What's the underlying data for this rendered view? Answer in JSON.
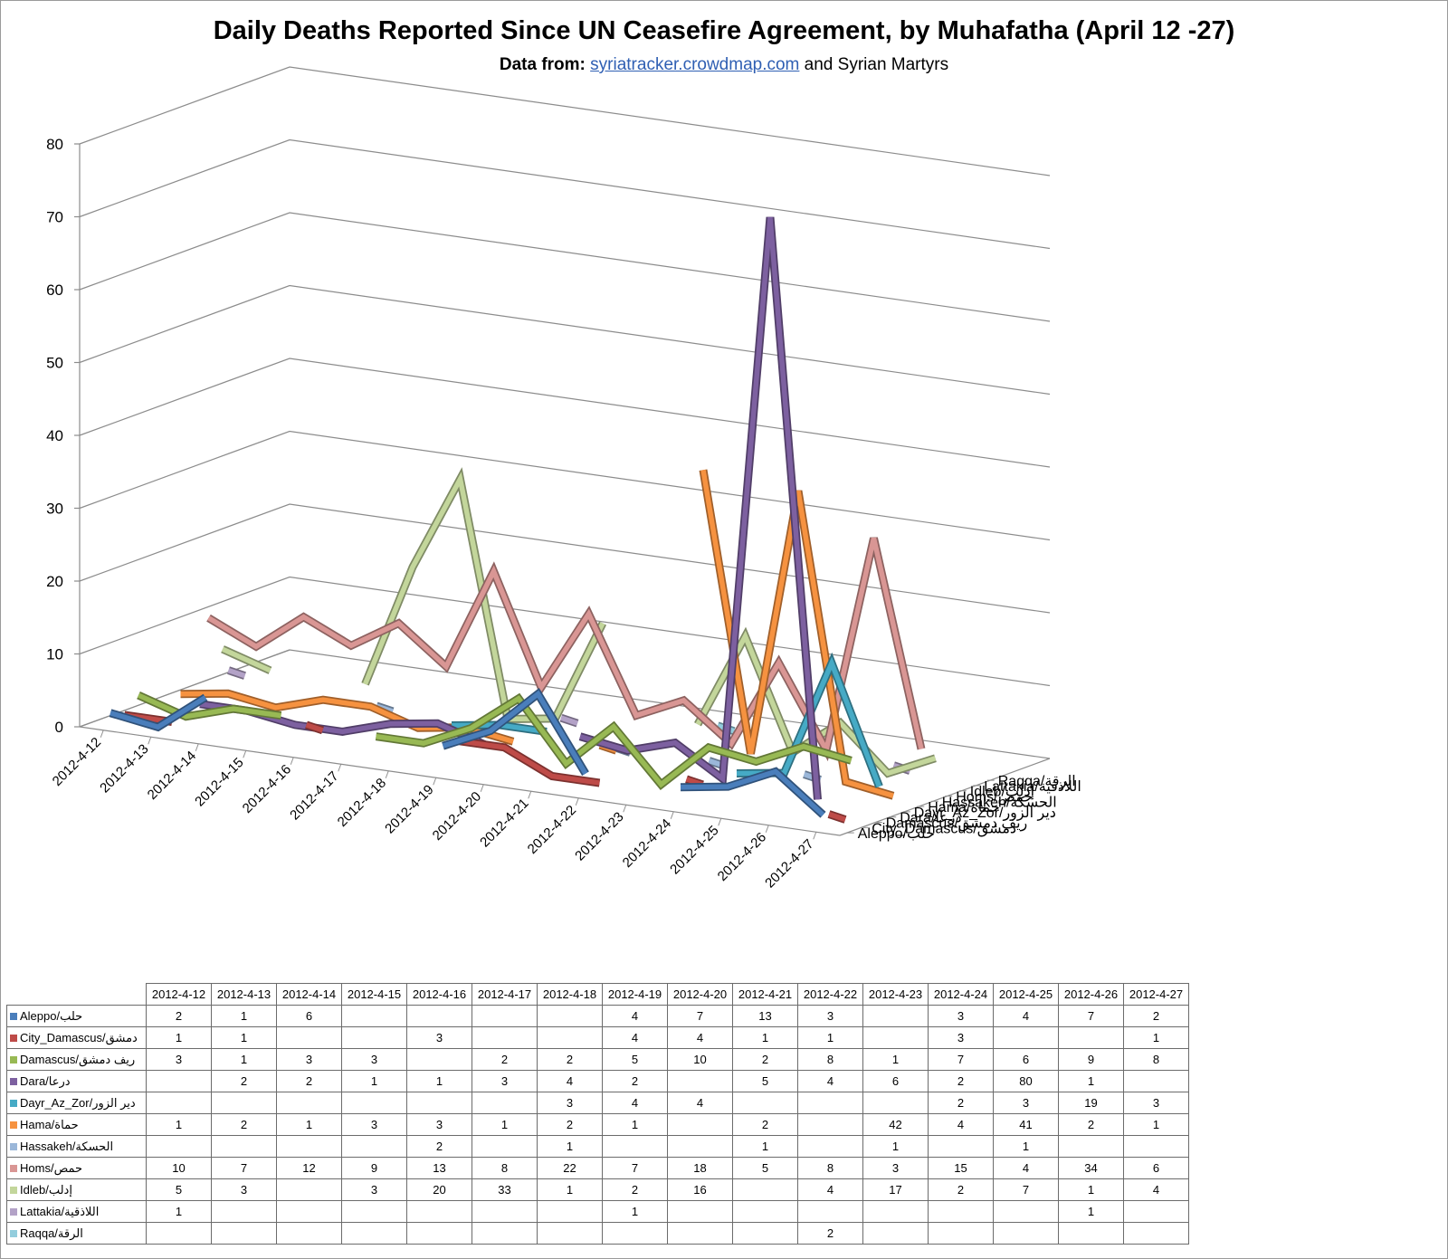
{
  "title": "Daily Deaths Reported Since UN Ceasefire Agreement, by Muhafatha (April 12 -27)",
  "subtitle": {
    "prefix": "Data from:",
    "link_text": "syriatracker.crowdmap.com",
    "suffix": "and Syrian Martyrs"
  },
  "chart_data": {
    "type": "line",
    "style": "3d-line",
    "title": "Daily Deaths Reported Since UN Ceasefire Agreement, by Muhafatha (April 12 -27)",
    "categories": [
      "2012-4-12",
      "2012-4-13",
      "2012-4-14",
      "2012-4-15",
      "2012-4-16",
      "2012-4-17",
      "2012-4-18",
      "2012-4-19",
      "2012-4-20",
      "2012-4-21",
      "2012-4-22",
      "2012-4-23",
      "2012-4-24",
      "2012-4-25",
      "2012-4-26",
      "2012-4-27"
    ],
    "ylim": [
      0,
      80
    ],
    "y_ticks": [
      "0",
      "10",
      "20",
      "30",
      "40",
      "50",
      "60",
      "70",
      "80"
    ],
    "grid": true,
    "legend": "data-table-below",
    "series": [
      {
        "name": "Aleppo/حلب",
        "color": "#4a7ebb",
        "values": [
          2,
          1,
          6,
          null,
          null,
          null,
          null,
          4,
          7,
          13,
          3,
          null,
          3,
          4,
          7,
          2
        ]
      },
      {
        "name": "City_Damascus/دمشق",
        "color": "#be4b48",
        "values": [
          1,
          1,
          null,
          null,
          3,
          null,
          null,
          4,
          4,
          1,
          1,
          null,
          3,
          null,
          null,
          1
        ]
      },
      {
        "name": "Damascus/ريف دمشق",
        "color": "#98b954",
        "values": [
          3,
          1,
          3,
          3,
          null,
          2,
          2,
          5,
          10,
          2,
          8,
          1,
          7,
          6,
          9,
          8
        ]
      },
      {
        "name": "Dara/درعا",
        "color": "#7d60a0",
        "values": [
          null,
          2,
          2,
          1,
          1,
          3,
          4,
          2,
          null,
          5,
          4,
          6,
          2,
          80,
          1,
          null
        ]
      },
      {
        "name": "Dayr_Az_Zor/دير الزور",
        "color": "#46aac5",
        "values": [
          null,
          null,
          null,
          null,
          null,
          null,
          3,
          4,
          4,
          null,
          null,
          null,
          2,
          3,
          19,
          3
        ]
      },
      {
        "name": "Hama/حماة",
        "color": "#f69240",
        "values": [
          1,
          2,
          1,
          3,
          3,
          1,
          2,
          1,
          null,
          2,
          null,
          42,
          4,
          41,
          2,
          1
        ]
      },
      {
        "name": "Hassakeh/الحسكة",
        "color": "#9bb7d9",
        "values": [
          null,
          null,
          null,
          null,
          2,
          null,
          1,
          null,
          null,
          1,
          null,
          1,
          null,
          1,
          null,
          null
        ]
      },
      {
        "name": "Homs/حمص",
        "color": "#d99694",
        "values": [
          10,
          7,
          12,
          9,
          13,
          8,
          22,
          7,
          18,
          5,
          8,
          3,
          15,
          4,
          34,
          6
        ]
      },
      {
        "name": "Idleb/إدلب",
        "color": "#c3d69b",
        "values": [
          5,
          3,
          null,
          3,
          20,
          33,
          1,
          2,
          16,
          null,
          4,
          17,
          2,
          7,
          1,
          4
        ]
      },
      {
        "name": "Lattakia/اللاذقية",
        "color": "#b3a2c7",
        "values": [
          1,
          null,
          null,
          null,
          null,
          null,
          null,
          1,
          null,
          null,
          null,
          null,
          null,
          null,
          1,
          null
        ]
      },
      {
        "name": "Raqqa/الرقة",
        "color": "#93cddd",
        "values": [
          null,
          null,
          null,
          null,
          null,
          null,
          null,
          null,
          null,
          null,
          2,
          null,
          null,
          null,
          null,
          null
        ]
      }
    ]
  }
}
